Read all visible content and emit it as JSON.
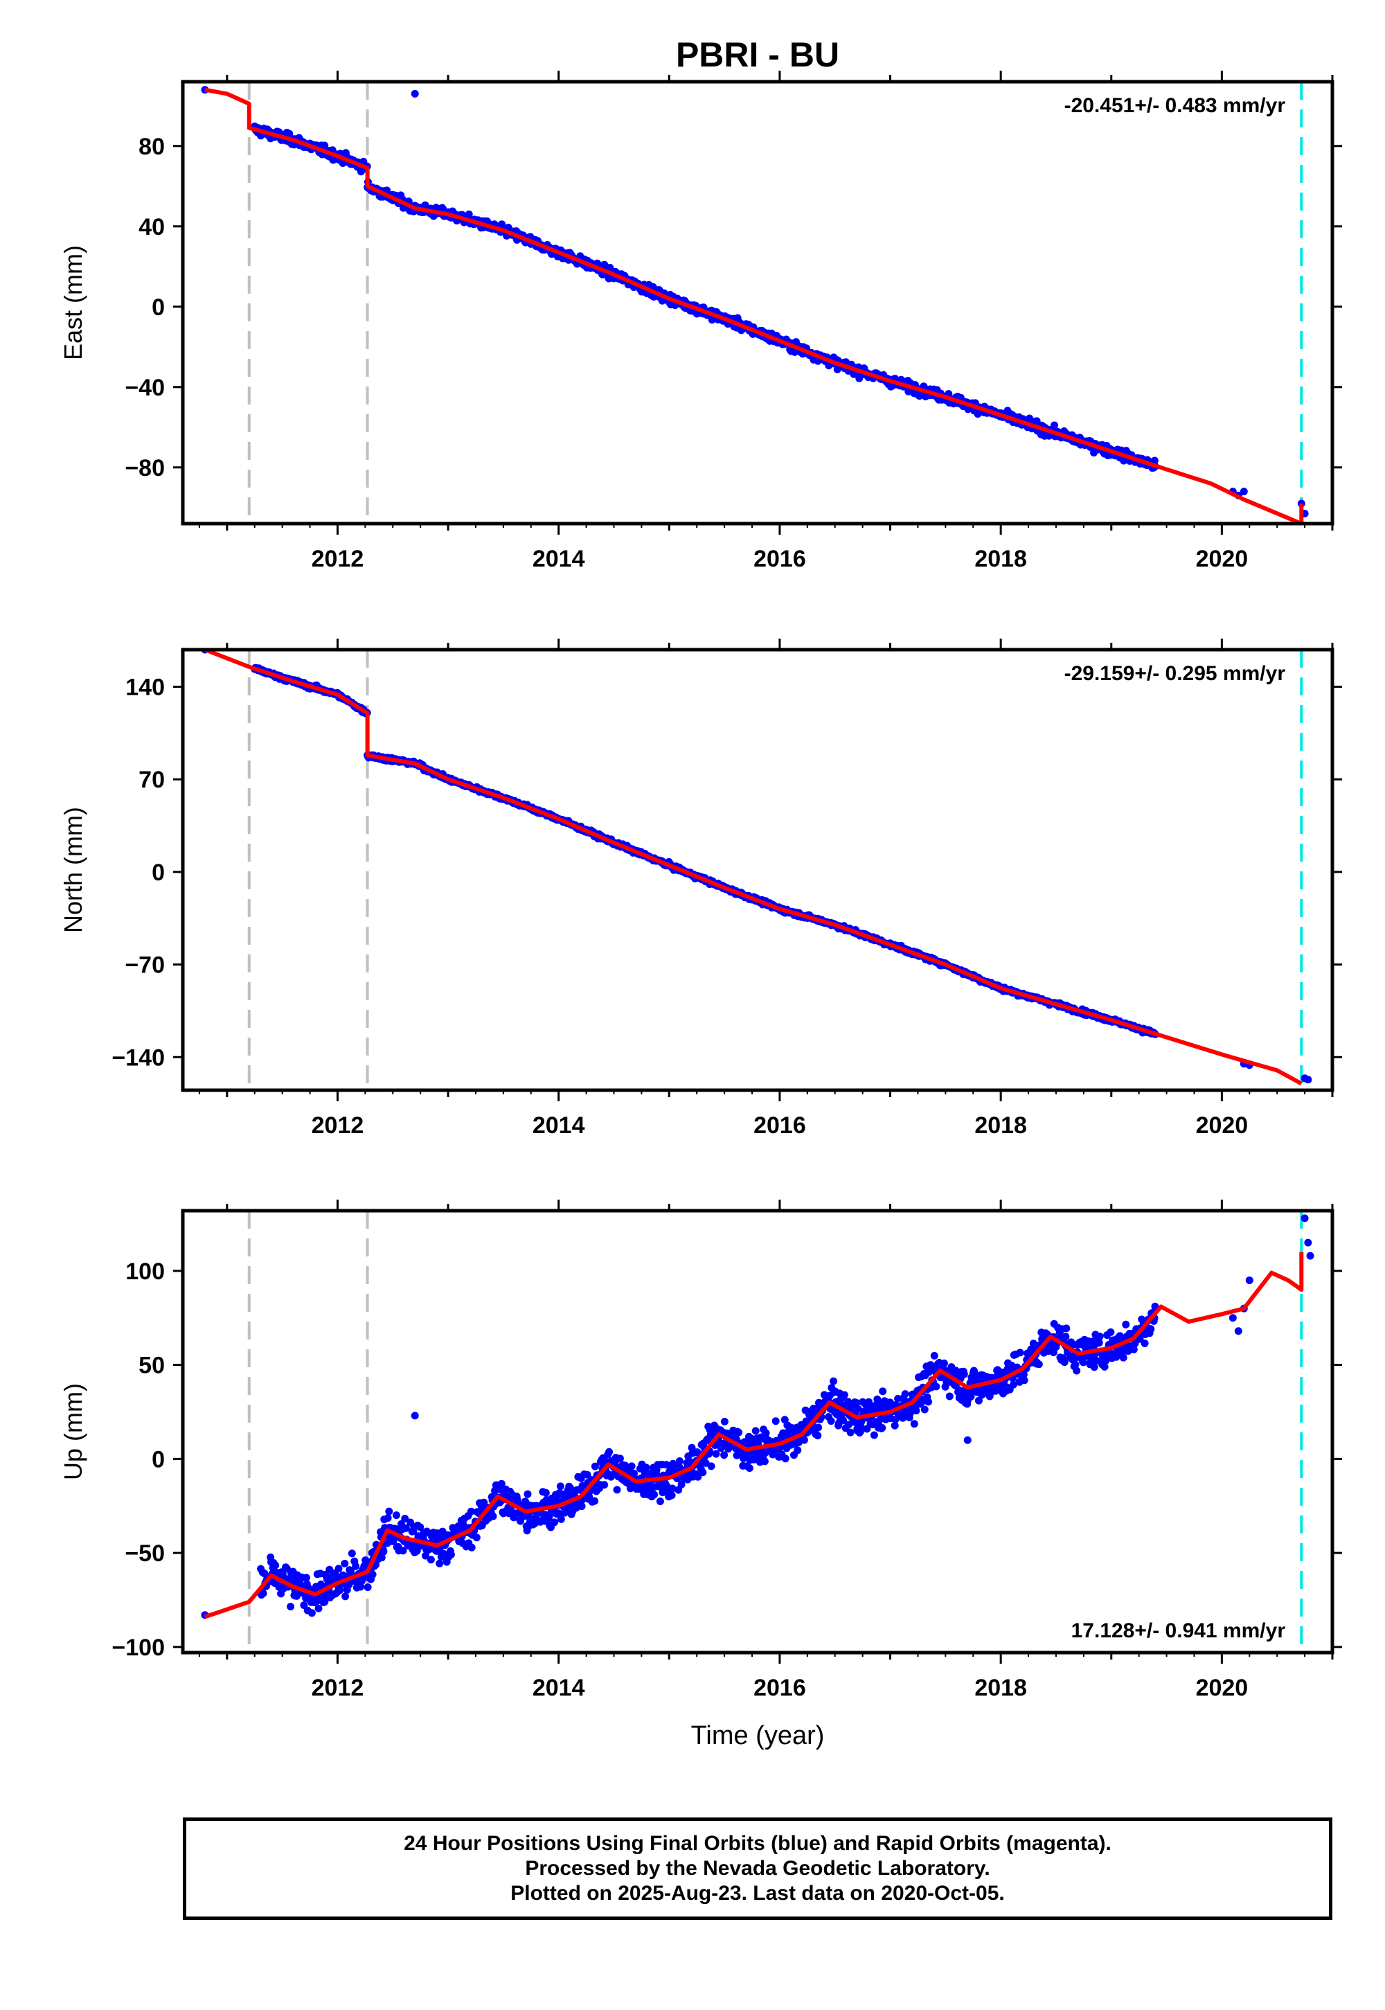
{
  "title": "PBRI - BU",
  "xlabel": "Time (year)",
  "colors": {
    "final_orbits": "#0000ff",
    "model": "#ff0000",
    "offset_lines": "#c0c0c0",
    "last_data_line": "#00e6e6"
  },
  "footer": {
    "line1": "24 Hour Positions Using Final Orbits (blue) and Rapid Orbits (magenta).",
    "line2": "Processed by the Nevada Geodetic Laboratory.",
    "line3": "Plotted on 2025-Aug-23. Last data on 2020-Oct-05."
  },
  "chart_data": [
    {
      "type": "scatter",
      "component": "east",
      "ylabel": "East (mm)",
      "velocity_label": "-20.451+/- 0.483 mm/yr",
      "velocity_position": "top-right",
      "xlim": [
        2010.6,
        2021.0
      ],
      "ylim": [
        -108,
        112
      ],
      "xticks": [
        2012,
        2014,
        2016,
        2018,
        2020
      ],
      "yticks": [
        -80,
        -40,
        0,
        40,
        80
      ],
      "offset_epochs": [
        2011.2,
        2012.27
      ],
      "last_data_epoch": 2020.72,
      "series": [
        {
          "style": "points",
          "points": [
            [
              2010.8,
              108
            ],
            [
              2012.7,
              106
            ],
            [
              2020.1,
              -92
            ],
            [
              2020.15,
              -94
            ],
            [
              2020.2,
              -92
            ],
            [
              2020.72,
              -98
            ],
            [
              2020.75,
              -103
            ]
          ]
        },
        {
          "style": "points-dense",
          "segments": [
            [
              2011.25,
              2012.27,
              92,
              68
            ],
            [
              2012.27,
              2019.4,
              60,
              -76
            ]
          ],
          "amplitude": 3
        },
        {
          "style": "line",
          "points": [
            [
              2010.8,
              108
            ],
            [
              2011.0,
              106
            ],
            [
              2011.2,
              101
            ],
            [
              2011.2,
              89
            ],
            [
              2011.6,
              83
            ],
            [
              2012.0,
              75
            ],
            [
              2012.27,
              69
            ],
            [
              2012.27,
              60
            ],
            [
              2012.7,
              49
            ],
            [
              2013.0,
              46
            ],
            [
              2013.5,
              38
            ],
            [
              2014.0,
              27
            ],
            [
              2014.5,
              16
            ],
            [
              2015.0,
              4
            ],
            [
              2015.5,
              -6
            ],
            [
              2016.0,
              -17
            ],
            [
              2016.5,
              -28
            ],
            [
              2017.0,
              -37
            ],
            [
              2017.5,
              -45
            ],
            [
              2018.0,
              -54
            ],
            [
              2018.5,
              -63
            ],
            [
              2019.0,
              -72
            ],
            [
              2019.5,
              -81
            ],
            [
              2019.9,
              -88
            ],
            [
              2020.2,
              -96
            ],
            [
              2020.72,
              -108
            ],
            [
              2020.72,
              -98
            ]
          ]
        }
      ]
    },
    {
      "type": "scatter",
      "component": "north",
      "ylabel": "North (mm)",
      "velocity_label": "-29.159+/- 0.295 mm/yr",
      "velocity_position": "top-right",
      "xlim": [
        2010.6,
        2021.0
      ],
      "ylim": [
        -165,
        168
      ],
      "xticks": [
        2012,
        2014,
        2016,
        2018,
        2020
      ],
      "yticks": [
        -140,
        -70,
        0,
        70,
        140
      ],
      "offset_epochs": [
        2011.2,
        2012.27
      ],
      "last_data_epoch": 2020.72,
      "series": [
        {
          "style": "points",
          "points": [
            [
              2010.8,
              168
            ],
            [
              2020.2,
              -145
            ],
            [
              2020.25,
              -146
            ],
            [
              2020.75,
              -156
            ],
            [
              2020.78,
              -157
            ]
          ]
        },
        {
          "style": "points-dense",
          "segments": [
            [
              2011.25,
              2012.27,
              145,
              120
            ],
            [
              2012.27,
              2019.4,
              88,
              -122
            ]
          ],
          "amplitude": 2
        },
        {
          "style": "line",
          "points": [
            [
              2010.8,
              168
            ],
            [
              2011.2,
              155
            ],
            [
              2011.6,
              144
            ],
            [
              2012.0,
              134
            ],
            [
              2012.27,
              120
            ],
            [
              2012.27,
              88
            ],
            [
              2012.7,
              82
            ],
            [
              2013.0,
              70
            ],
            [
              2013.5,
              56
            ],
            [
              2014.0,
              40
            ],
            [
              2014.5,
              22
            ],
            [
              2015.0,
              5
            ],
            [
              2015.5,
              -12
            ],
            [
              2016.0,
              -28
            ],
            [
              2016.5,
              -40
            ],
            [
              2017.0,
              -55
            ],
            [
              2017.5,
              -70
            ],
            [
              2018.0,
              -88
            ],
            [
              2018.5,
              -100
            ],
            [
              2019.0,
              -112
            ],
            [
              2019.5,
              -125
            ],
            [
              2020.0,
              -138
            ],
            [
              2020.5,
              -150
            ],
            [
              2020.72,
              -160
            ]
          ]
        }
      ]
    },
    {
      "type": "scatter",
      "component": "up",
      "ylabel": "Up (mm)",
      "velocity_label": "17.128+/- 0.941 mm/yr",
      "velocity_position": "bottom-right",
      "xlim": [
        2010.6,
        2021.0
      ],
      "ylim": [
        -103,
        132
      ],
      "xticks": [
        2012,
        2014,
        2016,
        2018,
        2020
      ],
      "yticks": [
        -100,
        -50,
        0,
        50,
        100
      ],
      "offset_epochs": [
        2011.2,
        2012.27
      ],
      "last_data_epoch": 2020.72,
      "series": [
        {
          "style": "points",
          "points": [
            [
              2010.8,
              -83
            ],
            [
              2012.7,
              23
            ],
            [
              2017.7,
              10
            ],
            [
              2020.1,
              75
            ],
            [
              2020.15,
              68
            ],
            [
              2020.2,
              80
            ],
            [
              2020.25,
              95
            ],
            [
              2020.75,
              128
            ],
            [
              2020.78,
              115
            ],
            [
              2020.8,
              108
            ]
          ]
        },
        {
          "style": "points-dense",
          "segments": [
            [
              2011.3,
              2019.4,
              -65,
              70
            ]
          ],
          "amplitude": 12,
          "seasonal": 14
        },
        {
          "style": "line",
          "points": [
            [
              2010.8,
              -84
            ],
            [
              2011.0,
              -80
            ],
            [
              2011.2,
              -76
            ],
            [
              2011.4,
              -62
            ],
            [
              2011.6,
              -68
            ],
            [
              2011.8,
              -72
            ],
            [
              2012.0,
              -66
            ],
            [
              2012.27,
              -60
            ],
            [
              2012.45,
              -38
            ],
            [
              2012.6,
              -42
            ],
            [
              2012.9,
              -46
            ],
            [
              2013.2,
              -38
            ],
            [
              2013.45,
              -20
            ],
            [
              2013.7,
              -28
            ],
            [
              2014.0,
              -25
            ],
            [
              2014.2,
              -20
            ],
            [
              2014.45,
              -3
            ],
            [
              2014.7,
              -12
            ],
            [
              2015.0,
              -10
            ],
            [
              2015.2,
              -5
            ],
            [
              2015.45,
              13
            ],
            [
              2015.7,
              5
            ],
            [
              2016.0,
              8
            ],
            [
              2016.2,
              13
            ],
            [
              2016.45,
              30
            ],
            [
              2016.7,
              22
            ],
            [
              2017.0,
              25
            ],
            [
              2017.2,
              30
            ],
            [
              2017.45,
              47
            ],
            [
              2017.7,
              38
            ],
            [
              2018.0,
              42
            ],
            [
              2018.2,
              48
            ],
            [
              2018.45,
              65
            ],
            [
              2018.7,
              56
            ],
            [
              2019.0,
              59
            ],
            [
              2019.2,
              64
            ],
            [
              2019.45,
              81
            ],
            [
              2019.7,
              73
            ],
            [
              2020.0,
              77
            ],
            [
              2020.2,
              80
            ],
            [
              2020.45,
              99
            ],
            [
              2020.6,
              95
            ],
            [
              2020.72,
              90
            ],
            [
              2020.72,
              110
            ]
          ]
        }
      ]
    }
  ]
}
